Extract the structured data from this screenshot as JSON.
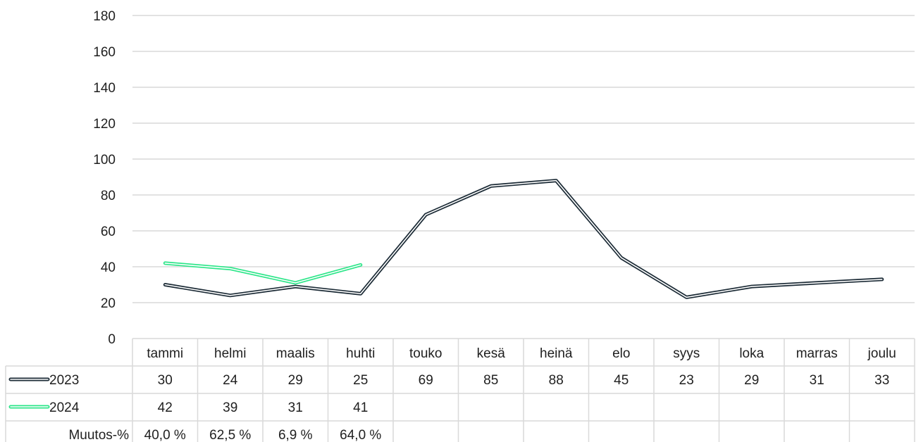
{
  "chart_data": {
    "type": "line",
    "title": "",
    "xlabel": "",
    "ylabel": "",
    "categories": [
      "tammi",
      "helmi",
      "maalis",
      "huhti",
      "touko",
      "kesä",
      "heinä",
      "elo",
      "syys",
      "loka",
      "marras",
      "joulu"
    ],
    "ylim": [
      0,
      180
    ],
    "yticks": [
      0,
      20,
      40,
      60,
      80,
      100,
      120,
      140,
      160,
      180
    ],
    "grid": true,
    "legend": "data-table",
    "series": [
      {
        "name": "2023",
        "color": "#1c2b36",
        "values": [
          30,
          24,
          29,
          25,
          69,
          85,
          88,
          45,
          23,
          29,
          31,
          33
        ]
      },
      {
        "name": "2024",
        "color": "#2ee68a",
        "values": [
          42,
          39,
          31,
          41,
          null,
          null,
          null,
          null,
          null,
          null,
          null,
          null
        ]
      }
    ],
    "table": {
      "row_label_change": "Muutos-%",
      "change_values": [
        "40,0 %",
        "62,5 %",
        "6,9 %",
        "64,0 %",
        "",
        "",
        "",
        "",
        "",
        "",
        "",
        ""
      ]
    }
  }
}
